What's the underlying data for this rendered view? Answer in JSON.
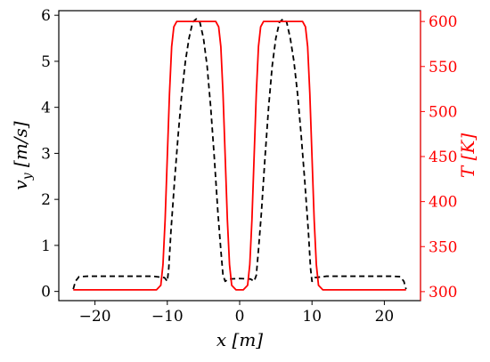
{
  "chart_data": {
    "type": "line",
    "title": "",
    "xlabel": "x [m]",
    "ylabel_left": "v_y [m/s]",
    "ylabel_right": "T [K]",
    "xlim": [
      -25,
      25
    ],
    "ylim_left": [
      -0.2,
      6.1
    ],
    "ylim_right": [
      290,
      612
    ],
    "xticks": [
      -20,
      -10,
      0,
      10,
      20
    ],
    "yticks_left": [
      0,
      1,
      2,
      3,
      4,
      5,
      6
    ],
    "yticks_right": [
      300,
      350,
      400,
      450,
      500,
      550,
      600
    ],
    "grid": false,
    "legend": "none",
    "colors": {
      "left_axis": "#000000",
      "right_axis": "#ff0000",
      "v_y": "#000000",
      "T": "#ff0000"
    },
    "series": [
      {
        "axis": "left",
        "style": "dashed",
        "color": "#000000",
        "x": [
          -23,
          -22.7,
          -22.2,
          -21,
          -16,
          -12,
          -10.4,
          -10.0,
          -9.8,
          -9.5,
          -9.0,
          -8.5,
          -8.0,
          -7.5,
          -7.0,
          -6.5,
          -6.0,
          -5.5,
          -5.0,
          -4.5,
          -4.0,
          -3.5,
          -3.0,
          -2.6,
          -2.3,
          -2.0,
          -1.5,
          0,
          1.5,
          2.0,
          2.3,
          2.6,
          3.0,
          3.5,
          4.0,
          4.5,
          5.0,
          5.5,
          6.0,
          6.5,
          7.0,
          7.5,
          8.0,
          8.5,
          9.0,
          9.5,
          9.8,
          10.0,
          10.4,
          12,
          16,
          21,
          22.2,
          22.7,
          23
        ],
        "y": [
          0.05,
          0.22,
          0.32,
          0.33,
          0.33,
          0.33,
          0.3,
          0.22,
          0.5,
          1.3,
          2.4,
          3.4,
          4.3,
          5.0,
          5.5,
          5.85,
          5.92,
          5.85,
          5.5,
          4.9,
          4.0,
          2.9,
          1.7,
          0.9,
          0.35,
          0.22,
          0.27,
          0.28,
          0.27,
          0.22,
          0.35,
          0.9,
          1.7,
          2.9,
          4.0,
          4.9,
          5.5,
          5.85,
          5.92,
          5.85,
          5.5,
          5.0,
          4.3,
          3.4,
          2.4,
          1.3,
          0.5,
          0.22,
          0.3,
          0.33,
          0.33,
          0.33,
          0.32,
          0.22,
          0.05
        ]
      },
      {
        "axis": "right",
        "style": "solid",
        "color": "#ff0000",
        "x": [
          -23,
          -15,
          -11.5,
          -10.9,
          -10.6,
          -10.3,
          -10.0,
          -9.7,
          -9.4,
          -9.1,
          -8.7,
          -8.0,
          -7.0,
          -6.0,
          -5.0,
          -4.0,
          -3.3,
          -2.9,
          -2.6,
          -2.3,
          -2.0,
          -1.7,
          -1.4,
          -1.1,
          -0.5,
          0,
          0.5,
          1.1,
          1.4,
          1.7,
          2.0,
          2.3,
          2.6,
          2.9,
          3.3,
          4.0,
          5.0,
          6.0,
          7.0,
          8.0,
          8.7,
          9.1,
          9.4,
          9.7,
          10.0,
          10.3,
          10.6,
          10.9,
          11.5,
          15,
          23
        ],
        "y": [
          302,
          302,
          302,
          307,
          330,
          380,
          450,
          520,
          572,
          594,
          600,
          600,
          600,
          600,
          600,
          600,
          600,
          594,
          572,
          520,
          450,
          380,
          330,
          307,
          302,
          302,
          302,
          307,
          330,
          380,
          450,
          520,
          572,
          594,
          600,
          600,
          600,
          600,
          600,
          600,
          600,
          594,
          572,
          520,
          450,
          380,
          330,
          307,
          302,
          302,
          302
        ]
      }
    ]
  }
}
